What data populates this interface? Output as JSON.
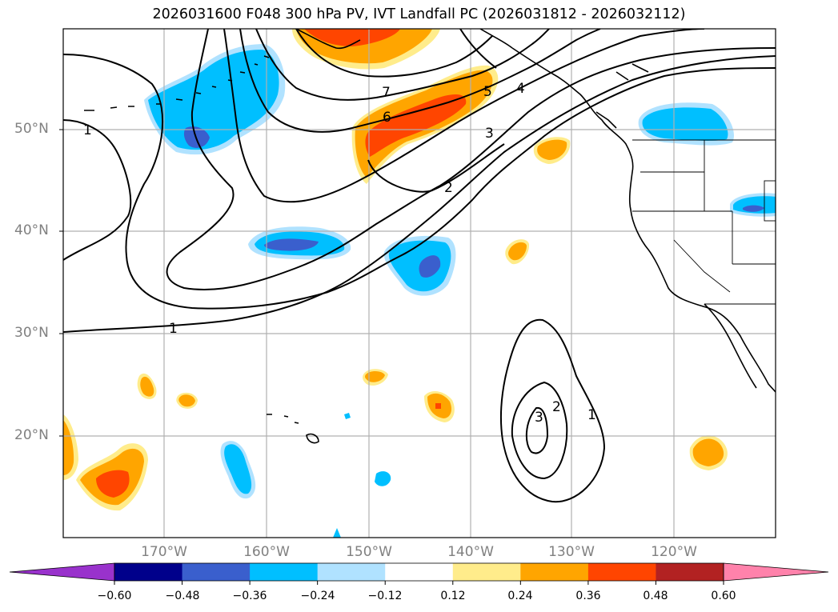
{
  "title": "2026031600 F048 300 hPa PV, IVT Landfall PC (2026031812 - 2026032112)",
  "lat_labels": [
    "50°N",
    "40°N",
    "30°N",
    "20°N"
  ],
  "lon_labels": [
    "170°W",
    "160°W",
    "150°W",
    "140°W",
    "130°W",
    "120°W"
  ],
  "contour_labels": [
    "1",
    "1",
    "1",
    "2",
    "2",
    "3",
    "3",
    "4",
    "5",
    "6",
    "7"
  ],
  "colorbar": {
    "ticks": [
      "−0.60",
      "−0.48",
      "−0.36",
      "−0.24",
      "−0.12",
      "0.12",
      "0.24",
      "0.36",
      "0.48",
      "0.60"
    ],
    "colors": [
      "#9932cc",
      "#00008b",
      "#3a5fcd",
      "#00bfff",
      "#b0e2ff",
      "#ffffff",
      "#ffec8b",
      "#ffa500",
      "#ff4500",
      "#b22222",
      "#ff82ab"
    ]
  }
}
